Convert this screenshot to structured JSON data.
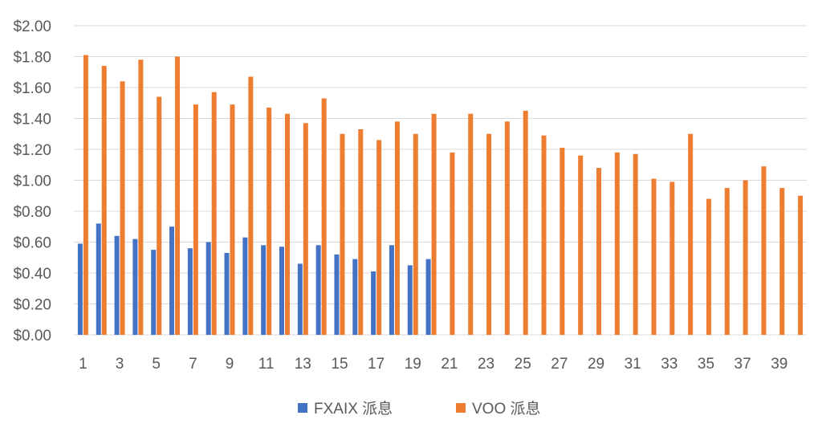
{
  "chart_data": {
    "type": "bar",
    "title": "",
    "xlabel": "",
    "ylabel": "",
    "ylim": [
      0,
      2.0
    ],
    "y_ticks": [
      "$0.00",
      "$0.20",
      "$0.40",
      "$0.60",
      "$0.80",
      "$1.00",
      "$1.20",
      "$1.40",
      "$1.60",
      "$1.80",
      "$2.00"
    ],
    "x_tick_labels": [
      "1",
      "3",
      "5",
      "7",
      "9",
      "11",
      "13",
      "15",
      "17",
      "19",
      "21",
      "23",
      "25",
      "27",
      "29",
      "31",
      "33",
      "35",
      "37",
      "39"
    ],
    "categories": [
      1,
      2,
      3,
      4,
      5,
      6,
      7,
      8,
      9,
      10,
      11,
      12,
      13,
      14,
      15,
      16,
      17,
      18,
      19,
      20,
      21,
      22,
      23,
      24,
      25,
      26,
      27,
      28,
      29,
      30,
      31,
      32,
      33,
      34,
      35,
      36,
      37,
      38,
      39,
      40
    ],
    "grid": true,
    "legend_position": "bottom",
    "series": [
      {
        "name": "FXAIX 派息",
        "color": "#4472C4",
        "values": [
          0.59,
          0.72,
          0.64,
          0.62,
          0.55,
          0.7,
          0.56,
          0.6,
          0.53,
          0.63,
          0.58,
          0.57,
          0.46,
          0.58,
          0.52,
          0.49,
          0.41,
          0.58,
          0.45,
          0.49,
          null,
          null,
          null,
          null,
          null,
          null,
          null,
          null,
          null,
          null,
          null,
          null,
          null,
          null,
          null,
          null,
          null,
          null,
          null,
          null
        ]
      },
      {
        "name": "VOO 派息",
        "color": "#ED7D31",
        "values": [
          1.81,
          1.74,
          1.64,
          1.78,
          1.54,
          1.8,
          1.49,
          1.57,
          1.49,
          1.67,
          1.47,
          1.43,
          1.37,
          1.53,
          1.3,
          1.33,
          1.26,
          1.38,
          1.3,
          1.43,
          1.18,
          1.43,
          1.3,
          1.38,
          1.45,
          1.29,
          1.21,
          1.16,
          1.08,
          1.18,
          1.17,
          1.01,
          0.99,
          1.3,
          0.88,
          0.95,
          1.0,
          1.09,
          0.95,
          0.9
        ]
      }
    ]
  }
}
